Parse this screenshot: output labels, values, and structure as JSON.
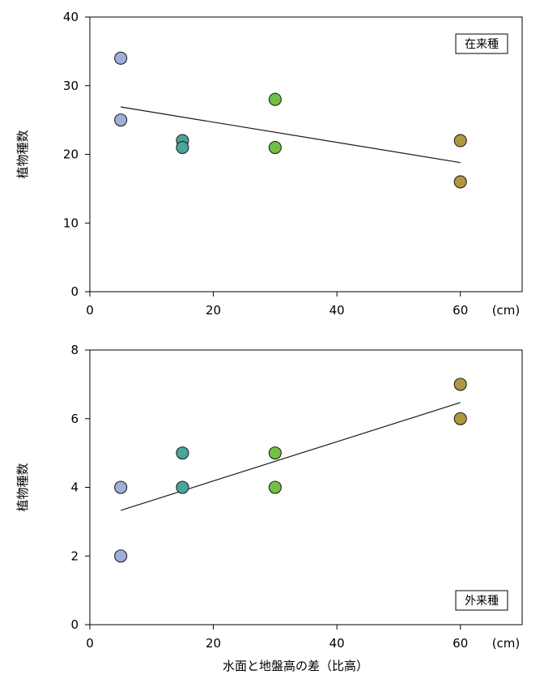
{
  "chart_data": [
    {
      "type": "scatter",
      "xlim": [
        0,
        70
      ],
      "ylim": [
        0,
        40
      ],
      "xticks": [
        0,
        20,
        40,
        60
      ],
      "yticks": [
        0,
        10,
        20,
        30,
        40
      ],
      "x_unit": "(cm)",
      "ylabel": "植物種数",
      "xlabel": "",
      "legend": "在来種",
      "legend_position": "top-right",
      "trendline": [
        [
          5,
          26.9
        ],
        [
          60,
          18.8
        ]
      ],
      "points": [
        {
          "x": 5,
          "y": 34,
          "color": "#a0aedd"
        },
        {
          "x": 5,
          "y": 25,
          "color": "#a0aedd"
        },
        {
          "x": 15,
          "y": 22,
          "color": "#4aa59a"
        },
        {
          "x": 15,
          "y": 21,
          "color": "#4aa59a"
        },
        {
          "x": 30,
          "y": 28,
          "color": "#72c043"
        },
        {
          "x": 30,
          "y": 21,
          "color": "#72c043"
        },
        {
          "x": 60,
          "y": 22,
          "color": "#b0963e"
        },
        {
          "x": 60,
          "y": 16,
          "color": "#b0963e"
        }
      ]
    },
    {
      "type": "scatter",
      "xlim": [
        0,
        70
      ],
      "ylim": [
        0,
        8
      ],
      "xticks": [
        0,
        20,
        40,
        60
      ],
      "yticks": [
        0,
        2,
        4,
        6,
        8
      ],
      "x_unit": "(cm)",
      "ylabel": "植物種数",
      "xlabel": "水面と地盤高の差（比高）",
      "legend": "外来種",
      "legend_position": "bottom-right",
      "trendline": [
        [
          5,
          3.33
        ],
        [
          60,
          6.47
        ]
      ],
      "points": [
        {
          "x": 5,
          "y": 4,
          "color": "#a0aedd"
        },
        {
          "x": 5,
          "y": 2,
          "color": "#a0aedd"
        },
        {
          "x": 15,
          "y": 5,
          "color": "#4aa59a"
        },
        {
          "x": 15,
          "y": 4,
          "color": "#4aa59a"
        },
        {
          "x": 30,
          "y": 5,
          "color": "#72c043"
        },
        {
          "x": 30,
          "y": 4,
          "color": "#72c043"
        },
        {
          "x": 60,
          "y": 7,
          "color": "#b0963e"
        },
        {
          "x": 60,
          "y": 6,
          "color": "#b0963e"
        }
      ]
    }
  ]
}
